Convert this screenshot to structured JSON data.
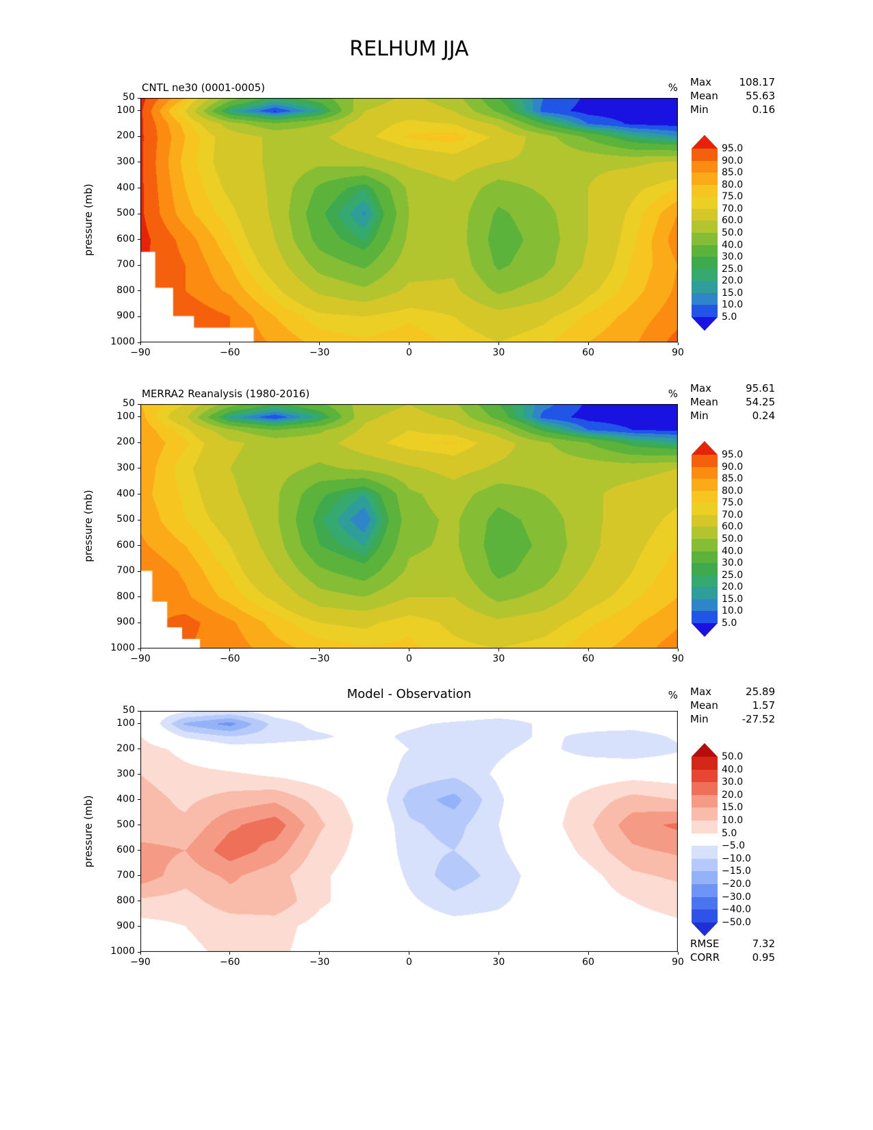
{
  "title": "RELHUM JJA",
  "axes": {
    "x_tick_labels": [
      "−90",
      "−60",
      "−30",
      "0",
      "30",
      "60",
      "90"
    ],
    "x_tick_values": [
      -90,
      -60,
      -30,
      0,
      30,
      60,
      90
    ],
    "y_tick_labels": [
      "50",
      "100",
      "200",
      "300",
      "400",
      "500",
      "600",
      "700",
      "800",
      "900",
      "1000"
    ],
    "y_tick_values": [
      50,
      100,
      200,
      300,
      400,
      500,
      600,
      700,
      800,
      900,
      1000
    ],
    "y_label": "pressure (mb)",
    "x_range": [
      -90,
      90
    ],
    "y_range": [
      50,
      1000
    ],
    "grid": false
  },
  "chart_data": [
    {
      "type": "heatmap",
      "style": "filled-contour",
      "title": "CNTL ne30 (0001-0005)",
      "units_label": "%",
      "stats": [
        {
          "label": "Max",
          "value": "108.17"
        },
        {
          "label": "Mean",
          "value": "55.63"
        },
        {
          "label": "Min",
          "value": "0.16"
        }
      ],
      "x": [
        -90,
        -75,
        -60,
        -45,
        -30,
        -15,
        0,
        15,
        30,
        45,
        60,
        75,
        90
      ],
      "y_levels": [
        50,
        100,
        150,
        200,
        300,
        400,
        500,
        600,
        700,
        800,
        900,
        1000
      ],
      "values": [
        [
          97,
          80,
          45,
          25,
          35,
          55,
          62,
          55,
          30,
          10,
          4,
          3,
          3
        ],
        [
          96,
          70,
          20,
          4,
          20,
          60,
          66,
          60,
          38,
          8,
          3,
          2,
          2
        ],
        [
          96,
          78,
          55,
          42,
          50,
          66,
          72,
          70,
          58,
          30,
          10,
          4,
          3
        ],
        [
          96,
          80,
          65,
          58,
          58,
          68,
          76,
          78,
          68,
          55,
          38,
          22,
          15
        ],
        [
          96,
          78,
          65,
          58,
          52,
          55,
          62,
          66,
          60,
          58,
          58,
          58,
          62
        ],
        [
          96,
          80,
          68,
          58,
          38,
          25,
          52,
          58,
          45,
          52,
          60,
          68,
          75
        ],
        [
          96,
          82,
          72,
          58,
          32,
          14,
          50,
          56,
          38,
          46,
          60,
          72,
          85
        ],
        [
          97,
          88,
          76,
          60,
          36,
          24,
          52,
          56,
          35,
          44,
          60,
          74,
          88
        ],
        [
          96,
          90,
          80,
          65,
          46,
          38,
          56,
          58,
          38,
          46,
          62,
          76,
          85
        ],
        [
          94,
          90,
          84,
          72,
          58,
          52,
          62,
          62,
          48,
          55,
          68,
          78,
          86
        ],
        [
          92,
          94,
          90,
          80,
          72,
          70,
          74,
          70,
          64,
          68,
          76,
          82,
          88
        ],
        [
          90,
          92,
          90,
          84,
          78,
          76,
          78,
          74,
          70,
          74,
          80,
          84,
          92
        ]
      ],
      "contour_bounds": [
        5,
        10,
        15,
        20,
        25,
        30,
        40,
        50,
        60,
        70,
        75,
        80,
        85,
        90,
        95
      ],
      "colorbar_labels": [
        "95.0",
        "90.0",
        "85.0",
        "80.0",
        "75.0",
        "70.0",
        "60.0",
        "50.0",
        "40.0",
        "30.0",
        "25.0",
        "20.0",
        "15.0",
        "10.0",
        "5.0"
      ],
      "colors": [
        "#1a12e0",
        "#2155e8",
        "#2e86c8",
        "#2f9e9a",
        "#35a96f",
        "#3faa4d",
        "#5cb33c",
        "#85bd34",
        "#b2c42e",
        "#d6c729",
        "#eccf25",
        "#f7c51f",
        "#fbaa18",
        "#fb8b11",
        "#f4600b",
        "#e62309"
      ],
      "mask_polygon": [
        [
          -90,
          650
        ],
        [
          -85,
          650
        ],
        [
          -85,
          790
        ],
        [
          -79,
          790
        ],
        [
          -79,
          900
        ],
        [
          -72,
          900
        ],
        [
          -72,
          945
        ],
        [
          -52,
          945
        ],
        [
          -52,
          1000
        ],
        [
          -90,
          1000
        ]
      ]
    },
    {
      "type": "heatmap",
      "style": "filled-contour",
      "title": "MERRA2 Reanalysis (1980-2016)",
      "units_label": "%",
      "stats": [
        {
          "label": "Max",
          "value": "95.61"
        },
        {
          "label": "Mean",
          "value": "54.25"
        },
        {
          "label": "Min",
          "value": "0.24"
        }
      ],
      "x": [
        -90,
        -75,
        -60,
        -45,
        -30,
        -15,
        0,
        15,
        30,
        45,
        60,
        75,
        90
      ],
      "y_levels": [
        50,
        100,
        150,
        200,
        300,
        400,
        500,
        600,
        700,
        800,
        900,
        1000
      ],
      "values": [
        [
          80,
          70,
          45,
          28,
          38,
          55,
          60,
          52,
          30,
          12,
          4,
          3,
          3
        ],
        [
          82,
          62,
          18,
          5,
          22,
          58,
          64,
          58,
          36,
          8,
          3,
          2,
          2
        ],
        [
          84,
          72,
          52,
          40,
          48,
          62,
          70,
          66,
          55,
          28,
          10,
          5,
          4
        ],
        [
          85,
          76,
          62,
          56,
          56,
          66,
          74,
          76,
          65,
          52,
          40,
          26,
          20
        ],
        [
          84,
          72,
          60,
          54,
          48,
          52,
          58,
          64,
          58,
          56,
          56,
          56,
          60
        ],
        [
          82,
          74,
          62,
          52,
          32,
          20,
          48,
          55,
          44,
          50,
          58,
          64,
          68
        ],
        [
          84,
          75,
          66,
          52,
          26,
          10,
          46,
          52,
          36,
          44,
          57,
          66,
          72
        ],
        [
          86,
          80,
          70,
          55,
          30,
          20,
          48,
          52,
          34,
          42,
          57,
          68,
          75
        ],
        [
          90,
          84,
          74,
          60,
          42,
          34,
          52,
          55,
          37,
          45,
          60,
          70,
          78
        ],
        [
          90,
          86,
          78,
          68,
          54,
          50,
          60,
          60,
          47,
          53,
          66,
          74,
          80
        ],
        [
          88,
          92,
          86,
          78,
          70,
          68,
          74,
          68,
          62,
          66,
          74,
          79,
          84
        ],
        [
          86,
          90,
          88,
          82,
          78,
          76,
          76,
          72,
          70,
          73,
          78,
          82,
          88
        ]
      ],
      "contour_bounds": [
        5,
        10,
        15,
        20,
        25,
        30,
        40,
        50,
        60,
        70,
        75,
        80,
        85,
        90,
        95
      ],
      "colorbar_labels": [
        "95.0",
        "90.0",
        "85.0",
        "80.0",
        "75.0",
        "70.0",
        "60.0",
        "50.0",
        "40.0",
        "30.0",
        "25.0",
        "20.0",
        "15.0",
        "10.0",
        "5.0"
      ],
      "colors": [
        "#1a12e0",
        "#2155e8",
        "#2e86c8",
        "#2f9e9a",
        "#35a96f",
        "#3faa4d",
        "#5cb33c",
        "#85bd34",
        "#b2c42e",
        "#d6c729",
        "#eccf25",
        "#f7c51f",
        "#fbaa18",
        "#fb8b11",
        "#f4600b",
        "#e62309"
      ],
      "mask_polygon": [
        [
          -90,
          700
        ],
        [
          -86,
          700
        ],
        [
          -86,
          820
        ],
        [
          -81,
          820
        ],
        [
          -81,
          920
        ],
        [
          -76,
          920
        ],
        [
          -76,
          965
        ],
        [
          -70,
          965
        ],
        [
          -70,
          1000
        ],
        [
          -90,
          1000
        ]
      ]
    },
    {
      "type": "heatmap",
      "style": "filled-contour",
      "title": "Model - Observation",
      "units_label": "%",
      "stats": [
        {
          "label": "Max",
          "value": "25.89"
        },
        {
          "label": "Mean",
          "value": "1.57"
        },
        {
          "label": "Min",
          "value": "-27.52"
        }
      ],
      "extra_stats": [
        {
          "label": "RMSE",
          "value": "7.32"
        },
        {
          "label": "CORR",
          "value": "0.95"
        }
      ],
      "x": [
        -90,
        -75,
        -60,
        -45,
        -30,
        -15,
        0,
        15,
        30,
        45,
        60,
        75,
        90
      ],
      "y_levels": [
        50,
        100,
        150,
        200,
        300,
        400,
        500,
        600,
        700,
        800,
        900,
        1000
      ],
      "values": [
        [
          0,
          -4,
          -6,
          -2,
          0,
          1,
          1,
          0,
          -1,
          -2,
          -2,
          -1,
          0
        ],
        [
          3,
          -16,
          -22,
          -8,
          -3,
          -3,
          -4,
          -6,
          -8,
          -4,
          -3,
          -2,
          -1
        ],
        [
          5,
          -6,
          -10,
          -7,
          -6,
          -3,
          -6,
          -8,
          -8,
          -4,
          -6,
          -8,
          -4
        ],
        [
          8,
          3,
          -2,
          -3,
          -2,
          -2,
          -5,
          -8,
          -6,
          -3,
          -8,
          -10,
          -6
        ],
        [
          10,
          7,
          6,
          4,
          2,
          0,
          -7,
          -9,
          -4,
          0,
          2,
          3,
          2
        ],
        [
          12,
          9,
          12,
          14,
          8,
          2,
          -12,
          -17,
          -6,
          2,
          7,
          12,
          10
        ],
        [
          11,
          11,
          19,
          23,
          11,
          3,
          -9,
          -12,
          -5,
          2,
          9,
          18,
          21
        ],
        [
          17,
          15,
          23,
          18,
          8,
          3,
          -8,
          -10,
          -6,
          0,
          7,
          14,
          16
        ],
        [
          18,
          12,
          16,
          12,
          6,
          2,
          -6,
          -13,
          -8,
          -2,
          3,
          9,
          11
        ],
        [
          9,
          8,
          13,
          14,
          6,
          2,
          -4,
          -8,
          -6,
          -2,
          2,
          5,
          7
        ],
        [
          3,
          5,
          7,
          7,
          3,
          1,
          -2,
          -3,
          -3,
          -1,
          1,
          3,
          4
        ],
        [
          1,
          4,
          6,
          6,
          3,
          2,
          2,
          0,
          -1,
          0,
          1,
          2,
          3
        ]
      ],
      "contour_bounds": [
        -50,
        -40,
        -30,
        -20,
        -15,
        -10,
        -5,
        5,
        10,
        15,
        20,
        30,
        40,
        50
      ],
      "colorbar_labels": [
        "50.0",
        "40.0",
        "30.0",
        "20.0",
        "15.0",
        "10.0",
        "5.0",
        "−5.0",
        "−10.0",
        "−15.0",
        "−20.0",
        "−30.0",
        "−40.0",
        "−50.0"
      ],
      "colors": [
        "#1f2fd4",
        "#2f52e8",
        "#4a74f0",
        "#6e95f5",
        "#93b2f8",
        "#b5cafa",
        "#d7e1fc",
        "#ffffff",
        "#fcdcd2",
        "#f9bcab",
        "#f59a84",
        "#ef7058",
        "#e54733",
        "#d32717",
        "#b80d0d"
      ]
    }
  ]
}
